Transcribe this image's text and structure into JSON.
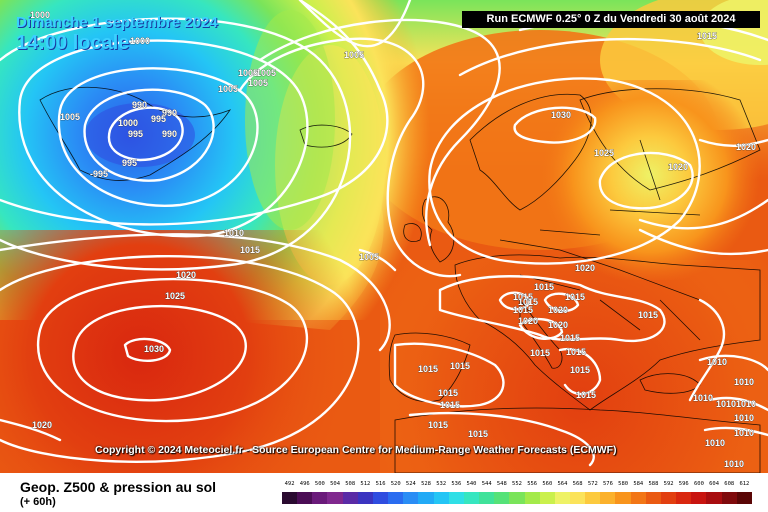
{
  "header": {
    "date_line": "Dimanche 1 septembre 2024",
    "time_line": "14:00 locale",
    "run_info": "Run ECMWF 0.25° 0 Z du Vendredi 30 août 2024"
  },
  "copyright": "Copyright © 2024 Meteociel.fr - Source European Centre for Medium-Range Weather Forecasts (ECMWF)",
  "footer": {
    "title": "Geop. Z500 & pression au sol",
    "subtitle": "(+ 60h)"
  },
  "legend": {
    "labels": [
      "492",
      "496",
      "500",
      "504",
      "508",
      "512",
      "516",
      "520",
      "524",
      "528",
      "532",
      "536",
      "540",
      "544",
      "548",
      "552",
      "556",
      "560",
      "564",
      "568",
      "572",
      "576",
      "580",
      "584",
      "588",
      "592",
      "596",
      "600",
      "604",
      "608",
      "612"
    ],
    "colors": [
      "#2a0a30",
      "#4b0d55",
      "#6a1a7a",
      "#80288e",
      "#5a2ba6",
      "#3b34c0",
      "#2f4de0",
      "#2a6cf0",
      "#2a8df5",
      "#22aaf6",
      "#24c5f5",
      "#2fdfe6",
      "#36e6c0",
      "#40e29a",
      "#55e278",
      "#7ae45a",
      "#a4ea4a",
      "#caf04c",
      "#eef266",
      "#fbe35a",
      "#fcca3e",
      "#fbb12c",
      "#f8941c",
      "#f27616",
      "#ea5a12",
      "#e23f10",
      "#d9270f",
      "#c8140f",
      "#a80d0f",
      "#7f0a0c",
      "#5a0606"
    ],
    "unit_note": ""
  },
  "isobar_labels": [
    {
      "text": "1000",
      "icon": "isobar-label"
    },
    {
      "text": "1000"
    },
    {
      "text": "990"
    },
    {
      "text": "990"
    },
    {
      "text": "995"
    },
    {
      "text": "1000"
    },
    {
      "text": "995"
    },
    {
      "text": "990"
    },
    {
      "text": "995"
    },
    {
      "text": "-995"
    },
    {
      "text": "1005"
    },
    {
      "text": "1005"
    },
    {
      "text": "1005"
    },
    {
      "text": "1005"
    },
    {
      "text": "1005"
    },
    {
      "text": "1005"
    },
    {
      "text": "1015"
    },
    {
      "text": "1030"
    },
    {
      "text": "1025"
    },
    {
      "text": "1020"
    },
    {
      "text": "1020"
    },
    {
      "text": "1010"
    },
    {
      "text": "1015"
    },
    {
      "text": "1020"
    },
    {
      "text": "1025"
    },
    {
      "text": "1030"
    },
    {
      "text": "1020"
    },
    {
      "text": "1005"
    },
    {
      "text": "1020"
    },
    {
      "text": "1015"
    },
    {
      "text": "1015"
    },
    {
      "text": "1015"
    },
    {
      "text": "1015"
    },
    {
      "text": "1015"
    },
    {
      "text": "1020"
    },
    {
      "text": "1020"
    },
    {
      "text": "1020"
    },
    {
      "text": "1015"
    },
    {
      "text": "1015"
    },
    {
      "text": "1015"
    },
    {
      "text": "1015"
    },
    {
      "text": "1015"
    },
    {
      "text": "1015"
    },
    {
      "text": "1015"
    },
    {
      "text": "1015"
    },
    {
      "text": "1015"
    },
    {
      "text": "1015"
    },
    {
      "text": "1015"
    },
    {
      "text": "1015"
    },
    {
      "text": "1010"
    },
    {
      "text": "1010"
    },
    {
      "text": "1010"
    },
    {
      "text": "1010"
    },
    {
      "text": "1010"
    },
    {
      "text": "1010"
    },
    {
      "text": "1010"
    },
    {
      "text": "1010"
    },
    {
      "text": "1010"
    }
  ]
}
